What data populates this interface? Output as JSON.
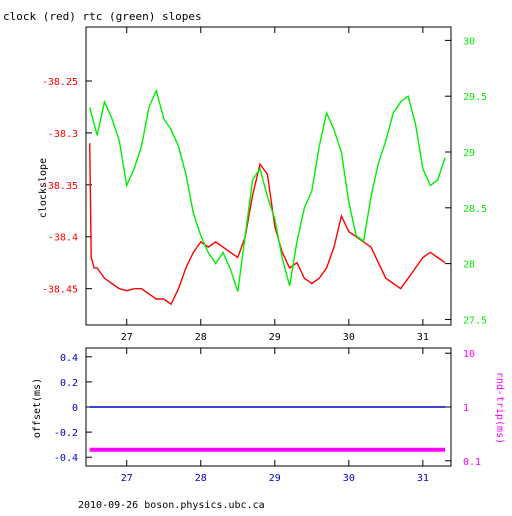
{
  "title": "clock (red) rtc (green) slopes",
  "footer": "2010-09-26 boson.physics.ubc.ca",
  "colors": {
    "clock": "#ff0000",
    "rtc": "#00ee00",
    "offset": "#0000cc",
    "rndtrip": "#ff00ff",
    "axis": "#000000"
  },
  "chart_data": [
    {
      "type": "line",
      "title": "clock (red) rtc (green) slopes",
      "ylabel": "clockslope",
      "xlim": [
        26.45,
        31.38
      ],
      "ylim": [
        -38.485,
        -38.198
      ],
      "y2lim": [
        27.45,
        30.12
      ],
      "x_ticks": [
        "27",
        "28",
        "29",
        "30",
        "31"
      ],
      "x_tick_values": [
        27,
        28,
        29,
        30,
        31
      ],
      "y_ticks": [
        "-38.25",
        "-38.3",
        "-38.35",
        "-38.4",
        "-38.45"
      ],
      "y_tick_values": [
        -38.25,
        -38.3,
        -38.35,
        -38.4,
        -38.45
      ],
      "y2_ticks": [
        "30",
        "29.5",
        "29",
        "28.5",
        "28",
        "27.5"
      ],
      "y2_tick_values": [
        30,
        29.5,
        29,
        28.5,
        28,
        27.5
      ],
      "grid": false,
      "series": [
        {
          "name": "clock",
          "axis": "left",
          "x": [
            26.5,
            26.52,
            26.56,
            26.6,
            26.7,
            26.8,
            26.9,
            27.0,
            27.1,
            27.2,
            27.3,
            27.4,
            27.5,
            27.6,
            27.7,
            27.8,
            27.9,
            28.0,
            28.1,
            28.2,
            28.3,
            28.4,
            28.5,
            28.6,
            28.7,
            28.8,
            28.9,
            29.0,
            29.1,
            29.2,
            29.3,
            29.4,
            29.5,
            29.6,
            29.7,
            29.8,
            29.9,
            30.0,
            30.1,
            30.2,
            30.3,
            30.4,
            30.5,
            30.6,
            30.7,
            30.8,
            30.9,
            31.0,
            31.1,
            31.2,
            31.3
          ],
          "y": [
            -38.31,
            -38.42,
            -38.43,
            -38.43,
            -38.44,
            -38.445,
            -38.45,
            -38.452,
            -38.45,
            -38.45,
            -38.455,
            -38.46,
            -38.46,
            -38.465,
            -38.45,
            -38.43,
            -38.415,
            -38.405,
            -38.41,
            -38.405,
            -38.41,
            -38.415,
            -38.42,
            -38.4,
            -38.36,
            -38.33,
            -38.34,
            -38.39,
            -38.415,
            -38.43,
            -38.425,
            -38.44,
            -38.445,
            -38.44,
            -38.43,
            -38.41,
            -38.38,
            -38.395,
            -38.4,
            -38.405,
            -38.41,
            -38.425,
            -38.44,
            -38.445,
            -38.45,
            -38.44,
            -38.43,
            -38.42,
            -38.415,
            -38.42,
            -38.425
          ]
        },
        {
          "name": "rtc",
          "axis": "right",
          "x": [
            26.5,
            26.6,
            26.7,
            26.8,
            26.9,
            27.0,
            27.1,
            27.2,
            27.3,
            27.4,
            27.5,
            27.6,
            27.7,
            27.8,
            27.9,
            28.0,
            28.1,
            28.2,
            28.3,
            28.4,
            28.5,
            28.6,
            28.7,
            28.8,
            28.9,
            29.0,
            29.1,
            29.2,
            29.3,
            29.4,
            29.5,
            29.6,
            29.7,
            29.8,
            29.9,
            30.0,
            30.1,
            30.2,
            30.3,
            30.4,
            30.5,
            30.6,
            30.7,
            30.8,
            30.9,
            31.0,
            31.1,
            31.2,
            31.3
          ],
          "y": [
            29.4,
            29.15,
            29.45,
            29.3,
            29.1,
            28.7,
            28.85,
            29.05,
            29.4,
            29.55,
            29.3,
            29.2,
            29.05,
            28.8,
            28.45,
            28.25,
            28.1,
            28.0,
            28.1,
            27.95,
            27.75,
            28.25,
            28.75,
            28.85,
            28.6,
            28.4,
            28.05,
            27.8,
            28.2,
            28.5,
            28.65,
            29.05,
            29.35,
            29.2,
            29.0,
            28.55,
            28.25,
            28.2,
            28.6,
            28.9,
            29.1,
            29.35,
            29.45,
            29.5,
            29.25,
            28.85,
            28.7,
            28.75,
            28.95
          ]
        }
      ]
    },
    {
      "type": "scatter",
      "ylabel": "offset(ms)",
      "y2label": "rnd-trip(ms)",
      "xlim": [
        26.45,
        31.38
      ],
      "ylim": [
        -0.47,
        0.47
      ],
      "y2lim": [
        0.08,
        12.5
      ],
      "y2_scale": "log",
      "x_ticks": [
        "27",
        "28",
        "29",
        "30",
        "31"
      ],
      "x_tick_values": [
        27,
        28,
        29,
        30,
        31
      ],
      "y_ticks": [
        "0.4",
        "0.2",
        "0",
        "-0.2",
        "-0.4"
      ],
      "y_tick_values": [
        0.4,
        0.2,
        0,
        -0.2,
        -0.4
      ],
      "y2_ticks": [
        "10",
        "1",
        "0.1"
      ],
      "y2_tick_values": [
        10,
        1,
        0.1
      ],
      "grid": false,
      "series": [
        {
          "name": "offset",
          "axis": "left",
          "x": [
            26.5,
            27.0,
            27.5,
            28.0,
            28.5,
            29.0,
            29.5,
            30.0,
            30.5,
            31.0,
            31.3
          ],
          "y": [
            0.0,
            0.0,
            0.0,
            0.0,
            0.0,
            0.0,
            0.0,
            0.0,
            0.0,
            0.0,
            0.0
          ]
        },
        {
          "name": "rnd-trip",
          "axis": "right",
          "x": [
            26.5,
            27.0,
            27.5,
            28.0,
            28.5,
            29.0,
            29.5,
            30.0,
            30.5,
            31.0,
            31.3
          ],
          "y": [
            0.16,
            0.16,
            0.16,
            0.16,
            0.16,
            0.16,
            0.16,
            0.16,
            0.16,
            0.16,
            0.16
          ]
        }
      ]
    }
  ]
}
